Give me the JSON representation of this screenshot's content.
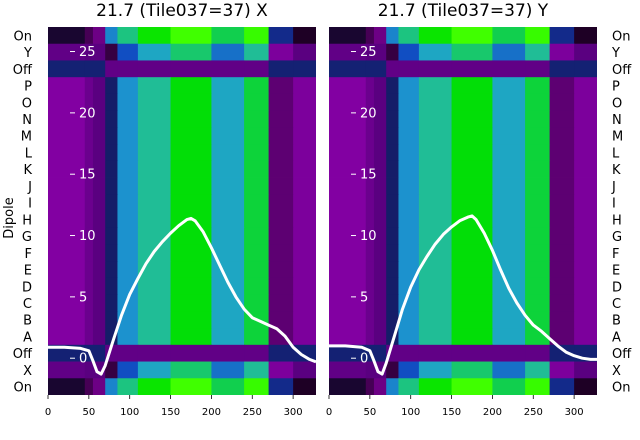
{
  "figure": {
    "ylabel": "Dipole"
  },
  "chart_data": [
    {
      "type": "heatmap",
      "title": "21.7 (Tile037=37) X",
      "ylabel": "Dipole",
      "row_labels": [
        "On",
        "X",
        "Off",
        "A",
        "B",
        "C",
        "D",
        "E",
        "F",
        "G",
        "H",
        "I",
        "J",
        "K",
        "L",
        "M",
        "N",
        "O",
        "P",
        "Off",
        "Y",
        "On"
      ],
      "x_ticks": [
        0,
        50,
        100,
        150,
        200,
        250,
        300
      ],
      "xlim": [
        0,
        328
      ],
      "overlay_ticks": [
        0,
        5,
        10,
        15,
        20,
        25
      ],
      "overlay_ylim": [
        -3,
        27
      ],
      "colormap": [
        "#5a0080",
        "#8a00a8",
        "#1a0020",
        "#0f40c0",
        "#1ea0d0",
        "#20c090",
        "#00e000",
        "#40ff00"
      ],
      "bands": [
        {
          "x0": 0,
          "x1": 45,
          "level": 0.12
        },
        {
          "x0": 45,
          "x1": 55,
          "level": 0.05
        },
        {
          "x0": 55,
          "x1": 70,
          "level": 0.0
        },
        {
          "x0": 70,
          "x1": 85,
          "level": 0.35
        },
        {
          "x0": 85,
          "x1": 110,
          "level": 0.55
        },
        {
          "x0": 110,
          "x1": 150,
          "level": 0.7
        },
        {
          "x0": 150,
          "x1": 200,
          "level": 0.85
        },
        {
          "x0": 200,
          "x1": 240,
          "level": 0.6
        },
        {
          "x0": 240,
          "x1": 270,
          "level": 0.8
        },
        {
          "x0": 270,
          "x1": 300,
          "level": 0.2
        },
        {
          "x0": 300,
          "x1": 328,
          "level": 0.1
        }
      ],
      "series": [
        {
          "x": [
            0,
            20,
            40,
            50,
            55,
            60,
            65,
            70,
            80,
            90,
            100,
            110,
            120,
            130,
            140,
            150,
            160,
            170,
            175,
            180,
            190,
            200,
            210,
            220,
            230,
            240,
            250,
            260,
            270,
            280,
            290,
            300,
            310,
            320,
            328
          ],
          "y": [
            0.9,
            0.9,
            0.8,
            0.6,
            -0.2,
            -1.1,
            -1.3,
            -0.6,
            1.5,
            3.5,
            5.2,
            6.5,
            7.7,
            8.7,
            9.5,
            10.2,
            10.8,
            11.3,
            11.4,
            11.2,
            10.3,
            9.0,
            7.6,
            6.2,
            5.0,
            4.0,
            3.3,
            3.0,
            2.7,
            2.4,
            1.8,
            0.9,
            0.3,
            -0.1,
            -0.3
          ]
        }
      ]
    },
    {
      "type": "heatmap",
      "title": "21.7 (Tile037=37) Y",
      "row_labels": [
        "On",
        "X",
        "Off",
        "A",
        "B",
        "C",
        "D",
        "E",
        "F",
        "G",
        "H",
        "I",
        "J",
        "K",
        "L",
        "M",
        "N",
        "O",
        "P",
        "Off",
        "Y",
        "On"
      ],
      "x_ticks": [
        0,
        50,
        100,
        150,
        200,
        250,
        300
      ],
      "xlim": [
        0,
        328
      ],
      "overlay_ticks": [
        0,
        5,
        10,
        15,
        20,
        25
      ],
      "overlay_ylim": [
        -3,
        27
      ],
      "colormap": [
        "#5a0080",
        "#8a00a8",
        "#1a0020",
        "#0f40c0",
        "#1ea0d0",
        "#20c090",
        "#00e000",
        "#40ff00"
      ],
      "bands": [
        {
          "x0": 0,
          "x1": 45,
          "level": 0.12
        },
        {
          "x0": 45,
          "x1": 55,
          "level": 0.05
        },
        {
          "x0": 55,
          "x1": 70,
          "level": 0.0
        },
        {
          "x0": 70,
          "x1": 85,
          "level": 0.35
        },
        {
          "x0": 85,
          "x1": 110,
          "level": 0.55
        },
        {
          "x0": 110,
          "x1": 150,
          "level": 0.7
        },
        {
          "x0": 150,
          "x1": 200,
          "level": 0.85
        },
        {
          "x0": 200,
          "x1": 240,
          "level": 0.6
        },
        {
          "x0": 240,
          "x1": 270,
          "level": 0.8
        },
        {
          "x0": 270,
          "x1": 300,
          "level": 0.2
        },
        {
          "x0": 300,
          "x1": 328,
          "level": 0.1
        }
      ],
      "series": [
        {
          "x": [
            0,
            20,
            40,
            50,
            55,
            60,
            65,
            70,
            80,
            90,
            100,
            110,
            120,
            130,
            140,
            150,
            160,
            170,
            175,
            180,
            190,
            200,
            210,
            220,
            230,
            240,
            250,
            260,
            270,
            280,
            290,
            300,
            310,
            320,
            328
          ],
          "y": [
            1.0,
            1.0,
            0.9,
            0.6,
            -0.2,
            -1.1,
            -1.3,
            -0.4,
            1.8,
            4.0,
            5.8,
            7.2,
            8.3,
            9.3,
            10.1,
            10.7,
            11.2,
            11.5,
            11.6,
            11.3,
            10.2,
            8.8,
            7.2,
            5.7,
            4.5,
            3.5,
            2.7,
            2.2,
            1.6,
            1.0,
            0.5,
            0.2,
            0.0,
            -0.1,
            -0.1
          ]
        }
      ]
    }
  ]
}
